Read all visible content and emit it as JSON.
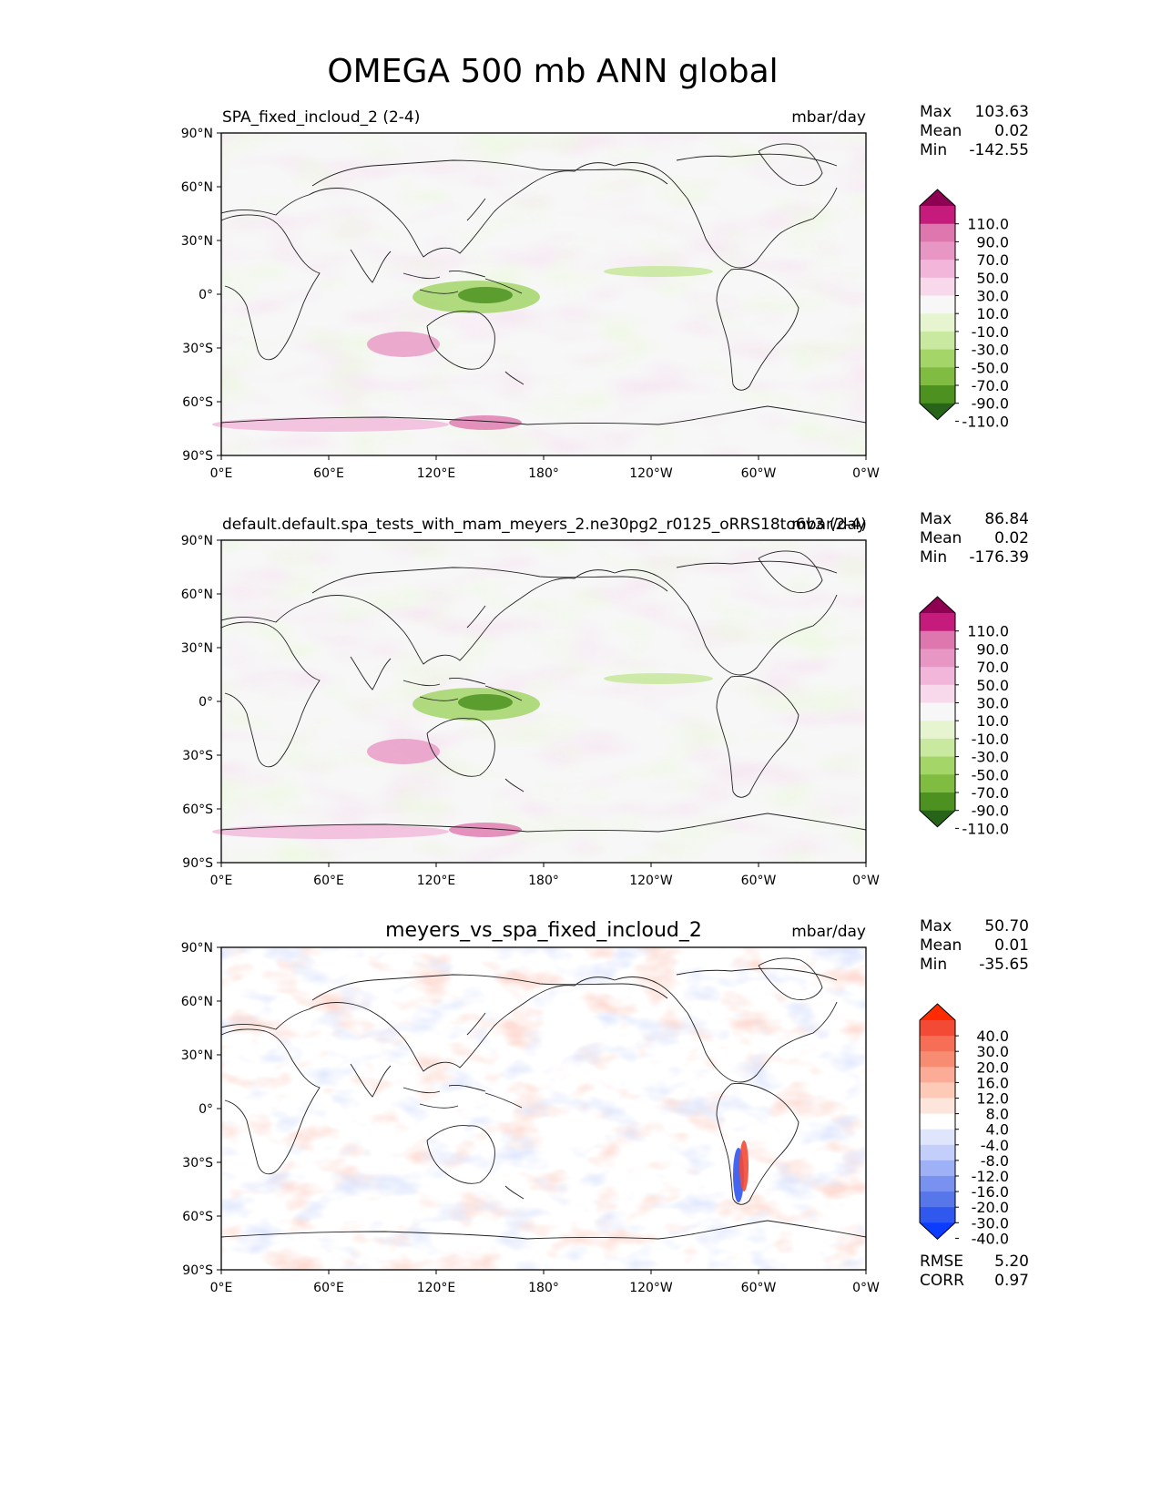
{
  "title": "OMEGA 500 mb ANN global",
  "axes": {
    "lat_ticks": [
      "90°N",
      "60°N",
      "30°N",
      "0°",
      "30°S",
      "60°S",
      "90°S"
    ],
    "lon_ticks": [
      "0°E",
      "60°E",
      "120°E",
      "180°",
      "120°W",
      "60°W",
      "0°W"
    ]
  },
  "chart_data": [
    {
      "type": "heatmap",
      "title": "SPA_fixed_incloud_2 (2-4)",
      "units": "mbar/day",
      "stats": {
        "max_label": "Max",
        "max": "103.63",
        "mean_label": "Mean",
        "mean": "0.02",
        "min_label": "Min",
        "min": "-142.55"
      },
      "colorbar": {
        "labels": [
          "110.0",
          "90.0",
          "70.0",
          "50.0",
          "30.0",
          "10.0",
          "-10.0",
          "-30.0",
          "-50.0",
          "-70.0",
          "-90.0",
          "-110.0"
        ],
        "colors": [
          "#8e0152",
          "#c51b7d",
          "#de77ae",
          "#e896c4",
          "#f1b6da",
          "#f8d8eb",
          "#f7f7f7",
          "#e6f5d0",
          "#c9e8a0",
          "#a3d568",
          "#7fbc41",
          "#4d9221",
          "#276419"
        ]
      },
      "field": "pos"
    },
    {
      "type": "heatmap",
      "title": "default.default.spa_tests_with_mam_meyers_2.ne30pg2_r0125_oRRS18to6v3 (2-4)",
      "units": "mbar/day",
      "stats": {
        "max_label": "Max",
        "max": "86.84",
        "mean_label": "Mean",
        "mean": "0.02",
        "min_label": "Min",
        "min": "-176.39"
      },
      "colorbar": {
        "labels": [
          "110.0",
          "90.0",
          "70.0",
          "50.0",
          "30.0",
          "10.0",
          "-10.0",
          "-30.0",
          "-50.0",
          "-70.0",
          "-90.0",
          "-110.0"
        ],
        "colors": [
          "#8e0152",
          "#c51b7d",
          "#de77ae",
          "#e896c4",
          "#f1b6da",
          "#f8d8eb",
          "#f7f7f7",
          "#e6f5d0",
          "#c9e8a0",
          "#a3d568",
          "#7fbc41",
          "#4d9221",
          "#276419"
        ]
      },
      "field": "pos"
    },
    {
      "type": "heatmap",
      "title": "meyers_vs_spa_fixed_incloud_2",
      "units": "mbar/day",
      "stats": {
        "max_label": "Max",
        "max": "50.70",
        "mean_label": "Mean",
        "mean": "0.01",
        "min_label": "Min",
        "min": "-35.65"
      },
      "colorbar": {
        "labels": [
          "40.0",
          "30.0",
          "20.0",
          "16.0",
          "12.0",
          "8.0",
          "4.0",
          "-4.0",
          "-8.0",
          "-12.0",
          "-16.0",
          "-20.0",
          "-30.0",
          "-40.0"
        ],
        "colors": [
          "#ff2a00",
          "#f24a35",
          "#f56e55",
          "#f88c73",
          "#fbab96",
          "#fdcab8",
          "#fee5dc",
          "#ffffff",
          "#dfe6fc",
          "#c3cefb",
          "#9fb1f6",
          "#7a92ef",
          "#5676ea",
          "#3057ee",
          "#0a3dff"
        ]
      },
      "rmse_label": "RMSE",
      "rmse": "5.20",
      "corr_label": "CORR",
      "corr": "0.97",
      "field": "diff"
    }
  ]
}
